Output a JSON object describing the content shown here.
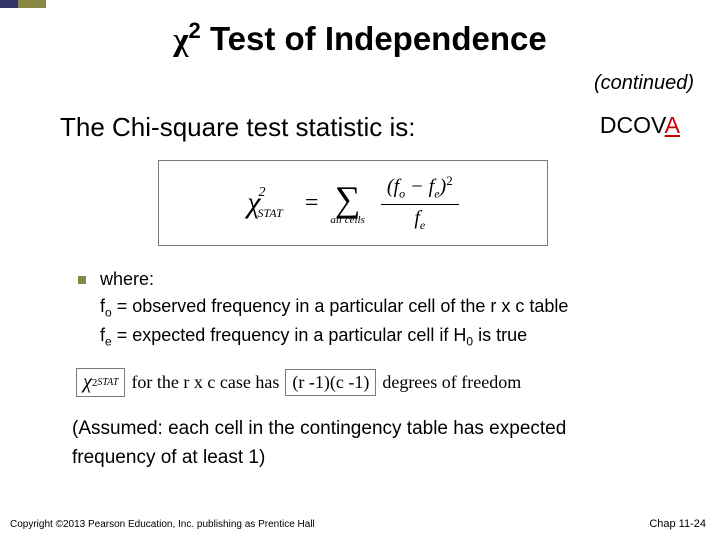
{
  "title_chi": "χ",
  "title_sup": "2",
  "title_rest": " Test of Independence",
  "continued": "(continued)",
  "subtitle": "The Chi-square test statistic is:",
  "dcova_prefix": "DCOV",
  "dcova_a": "A",
  "formula": {
    "chi": "χ",
    "exp": "2",
    "stat_sub": "STAT",
    "equals": "=",
    "sigma": "∑",
    "sigma_under": "all cells",
    "num_open": "(",
    "fo": "f",
    "fo_sub": "o",
    "minus": " − ",
    "fe": "f",
    "fe_sub": "e",
    "num_close": ")",
    "sq": "2",
    "den_f": "f",
    "den_sub": "e"
  },
  "where_label": "where:",
  "fo_line_a": "f",
  "fo_line_sub": "o",
  "fo_line_b": " = observed frequency in a particular cell of the  r x c  table",
  "fe_line_a": "f",
  "fe_line_sub": "e",
  "fe_line_b": " = expected frequency in a particular cell if H",
  "fe_line_h0": "0",
  "fe_line_c": " is true",
  "df": {
    "chi": "χ",
    "exp": "2",
    "sub": "STAT",
    "mid": " for the  r x c case  has  ",
    "expr": "(r -1)(c -1)",
    "tail": " degrees of freedom"
  },
  "assumed_l1": "(Assumed:  each cell in the contingency table has expected",
  "assumed_l2": "frequency of at least 1)",
  "copyright": "Copyright ©2013 Pearson Education, Inc. publishing as Prentice Hall",
  "chap": "Chap 11-24",
  "colors": {
    "accent1": "#333366",
    "accent2": "#888844",
    "red": "#cc0000"
  }
}
